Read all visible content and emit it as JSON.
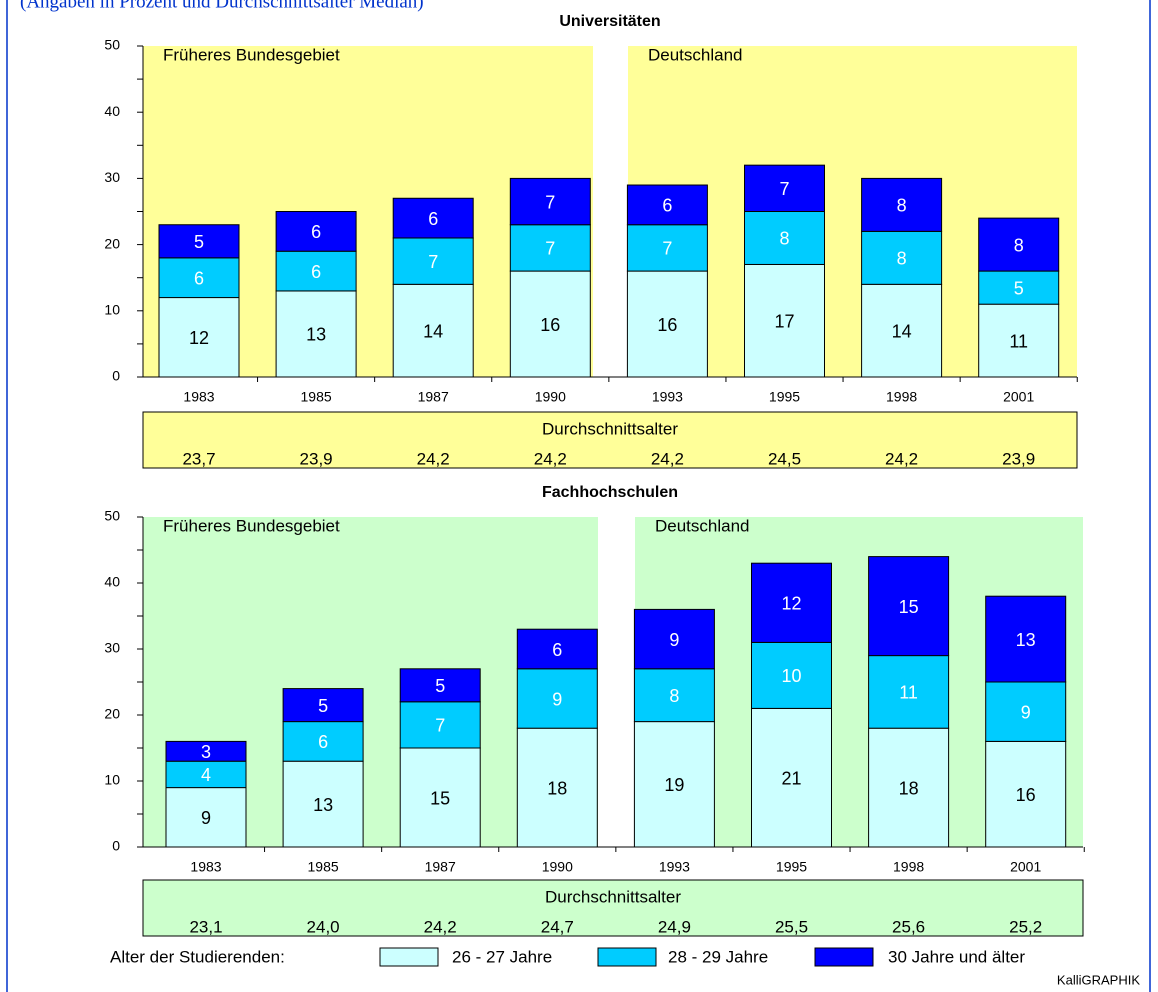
{
  "header": "(Angaben in Prozent und Durchschnittsalter Median)",
  "legend": {
    "title": "Alter der Studierenden:"
  },
  "credit": "KalliGRAPHIK",
  "chart_data": [
    {
      "type": "bar",
      "stacked": true,
      "title": "Universitäten",
      "background": "#ffff99",
      "region_labels": [
        "Früheres Bundesgebiet",
        "Deutschland"
      ],
      "categories": [
        "1983",
        "1985",
        "1987",
        "1990",
        "1993",
        "1995",
        "1998",
        "2001"
      ],
      "series": [
        {
          "name": "26 - 27 Jahre",
          "color": "#ccffff",
          "values": [
            12,
            13,
            14,
            16,
            16,
            17,
            14,
            11
          ]
        },
        {
          "name": "28 - 29 Jahre",
          "color": "#00ccff",
          "values": [
            6,
            6,
            7,
            7,
            7,
            8,
            8,
            5
          ]
        },
        {
          "name": "30 Jahre und älter",
          "color": "#0000ff",
          "values": [
            5,
            6,
            6,
            7,
            6,
            7,
            8,
            8
          ]
        }
      ],
      "ylim": [
        0,
        50
      ],
      "yticks": [
        0,
        10,
        20,
        30,
        40,
        50
      ],
      "average_age": {
        "label": "Durchschnittsalter",
        "values": [
          23.7,
          23.9,
          24.2,
          24.2,
          24.2,
          24.5,
          24.2,
          23.9
        ],
        "value_labels": [
          "23,7",
          "23,9",
          "24,2",
          "24,2",
          "24,2",
          "24,5",
          "24,2",
          "23,9"
        ]
      }
    },
    {
      "type": "bar",
      "stacked": true,
      "title": "Fachhochschulen",
      "background": "#ccffcc",
      "region_labels": [
        "Früheres Bundesgebiet",
        "Deutschland"
      ],
      "categories": [
        "1983",
        "1985",
        "1987",
        "1990",
        "1993",
        "1995",
        "1998",
        "2001"
      ],
      "series": [
        {
          "name": "26 - 27 Jahre",
          "color": "#ccffff",
          "values": [
            9,
            13,
            15,
            18,
            19,
            21,
            18,
            16
          ]
        },
        {
          "name": "28 - 29 Jahre",
          "color": "#00ccff",
          "values": [
            4,
            6,
            7,
            9,
            8,
            10,
            11,
            9
          ]
        },
        {
          "name": "30 Jahre und älter",
          "color": "#0000ff",
          "values": [
            3,
            5,
            5,
            6,
            9,
            12,
            15,
            13
          ]
        }
      ],
      "ylim": [
        0,
        50
      ],
      "yticks": [
        0,
        10,
        20,
        30,
        40,
        50
      ],
      "average_age": {
        "label": "Durchschnittsalter",
        "values": [
          23.1,
          24.0,
          24.2,
          24.7,
          24.9,
          25.5,
          25.6,
          25.2
        ],
        "value_labels": [
          "23,1",
          "24,0",
          "24,2",
          "24,7",
          "24,9",
          "25,5",
          "25,6",
          "25,2"
        ]
      }
    }
  ]
}
